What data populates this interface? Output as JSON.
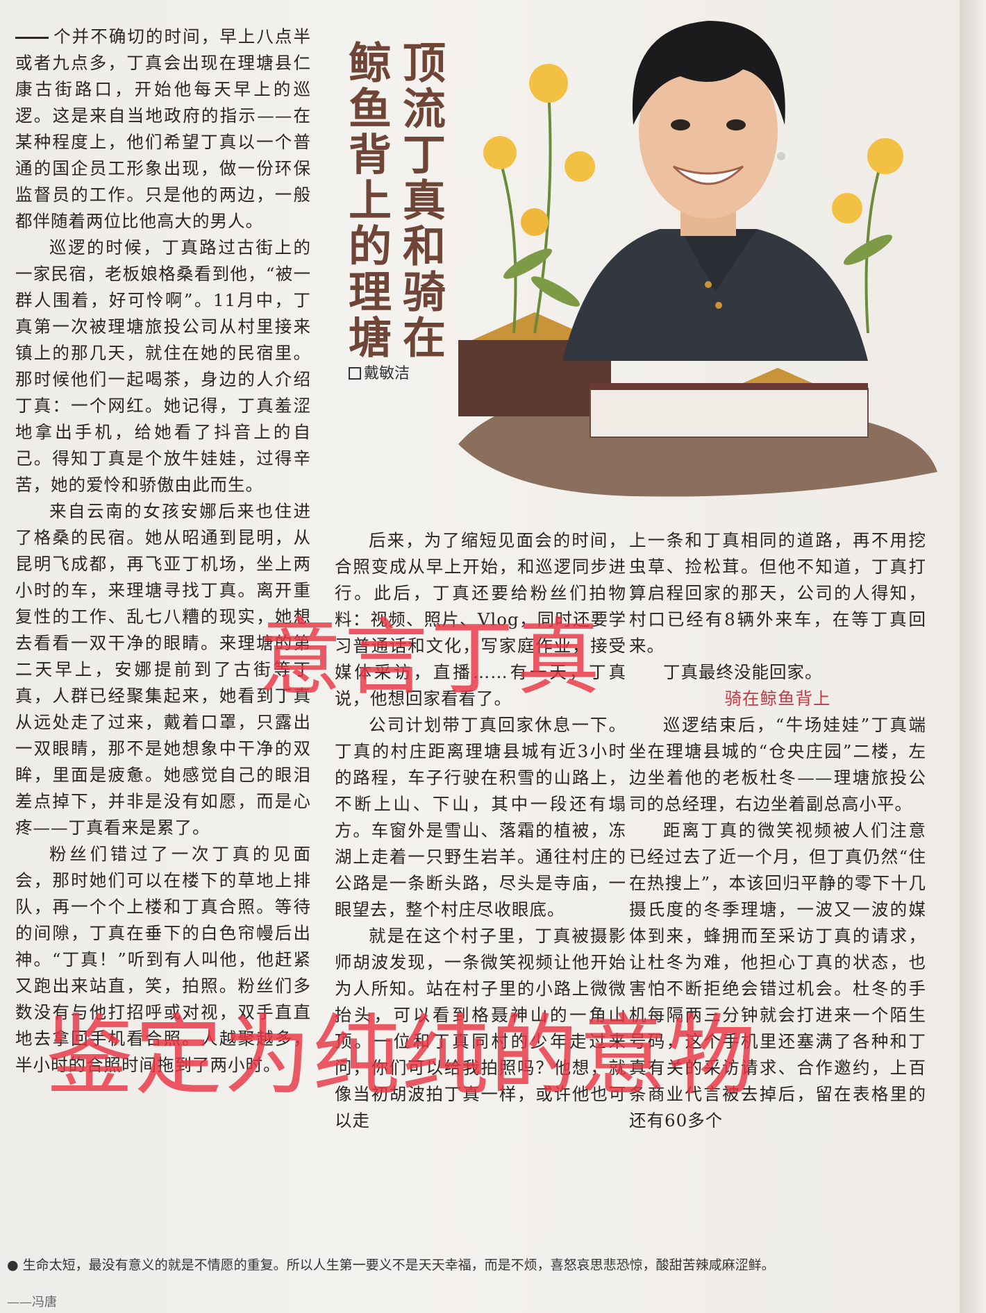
{
  "title": {
    "line1": "顶流丁真和骑在",
    "line2": "鲸鱼背上的理塘"
  },
  "author": "戴敏洁",
  "column1": [
    "个并不确切的时间，早上八点半或者九点多，丁真会出现在理塘县仁康古街路口，开始他每天早上的巡逻。这是来自当地政府的指示——在某种程度上，他们希望丁真以一个普通的国企员工形象出现，做一份环保监督员的工作。只是他的两边，一般都伴随着两位比他高大的男人。",
    "巡逻的时候，丁真路过古街上的一家民宿，老板娘格桑看到他，“被一群人围着，好可怜啊”。11月中，丁真第一次被理塘旅投公司从村里接来镇上的那几天，就住在她的民宿里。那时候他们一起喝茶，身边的人介绍丁真：一个网红。她记得，丁真羞涩地拿出手机，给她看了抖音上的自己。得知丁真是个放牛娃娃，过得辛苦，她的爱怜和骄傲由此而生。",
    "来自云南的女孩安娜后来也住进了格桑的民宿。她从昭通到昆明，从昆明飞成都，再飞亚丁机场，坐上两小时的车，来理塘寻找丁真。离开重复性的工作、乱七八糟的现实，她想去看看一双干净的眼睛。来理塘的第二天早上，安娜提前到了古街等丁真，人群已经聚集起来，她看到丁真从远处走了过来，戴着口罩，只露出一双眼睛，那不是她想象中干净的双眸，里面是疲惫。她感觉自己的眼泪差点掉下，并非是没有如愿，而是心疼——丁真看来是累了。",
    "粉丝们错过了一次丁真的见面会，那时她们可以在楼下的草地上排队，再一个个上楼和丁真合照。等待的间隙，丁真在垂下的白色帘幔后出神。“丁真！”听到有人叫他，他赶紧又跑出来站直，笑，拍照。粉丝们多数没有与他打招呼或对视，双手直直地去拿回手机看合照。人越聚越多，半小时的合照时间拖到了两小时。"
  ],
  "column2": [
    "后来，为了缩短见面会的时间，合照变成从早上开始，和巡逻同步进行。此后，丁真还要给粉丝们拍物料：视频、照片、Vlog，同时还要学习普通话和文化，写家庭作业，接受媒体采访，直播……有一天，丁真说，他想回家看看了。",
    "公司计划带丁真回家休息一下。丁真的村庄距离理塘县城有近3小时的路程，车子行驶在积雪的山路上，不断上山、下山，其中一段还有塌方。车窗外是雪山、落霜的植被，冻湖上走着一只野生岩羊。通往村庄的公路是一条断头路，尽头是寺庙，一眼望去，整个村庄尽收眼底。",
    "就是在这个村子里，丁真被摄影师胡波发现，一条微笑视频让他开始为人所知。站在村子里的小路上微微抬头，可以看到格聂神山的一角山顶。一位和丁真同村的少年走过来问，你们可以给我拍照吗？他想，就像当初胡波拍丁真一样，或许他也可以走"
  ],
  "column3": {
    "para1": "上一条和丁真相同的道路，再不用挖虫草、捡松茸。但他不知道，丁真打算启程回家的那天，公司的人得知，村口已经有8辆外来车，在等丁真回来。",
    "para2": "丁真最终没能回家。",
    "subhead": "骑在鲸鱼背上",
    "para3": "巡逻结束后，“牛场娃娃”丁真端坐在理塘县城的“仓央庄园”二楼，左边坐着他的老板杜冬——理塘旅投公司的总经理，右边坐着副总高小平。",
    "para4": "距离丁真的微笑视频被人们注意已经过去了近一个月，但丁真仍然“住在热搜上”，本该回归平静的零下十几摄氏度的冬季理塘，一波又一波的媒体到来，蜂拥而至采访丁真的请求，让杜冬为难，他担心丁真的状态，也害怕不断拒绝会错过机会。杜冬的手机每隔两三分钟就会打进来一个陌生号码，这个手机里还塞满了各种和丁真有关的采访请求、合作邀约，上百条商业代言被去掉后，留在表格里的还有60多个"
  },
  "watermark": {
    "text1": "意言丁真",
    "text2": "鉴定为纯纯的意物"
  },
  "footer": {
    "label": "● 生命太短，最没有意义的就是不情愿的重复。所以人生第一要义不是天天幸福，而是不烦，喜怒哀思悲恐惊，酸甜苦辣咸麻涩鲜。",
    "sub": "——冯唐"
  },
  "colors": {
    "title": "#6e4536",
    "watermark": "#e83644",
    "subhead": "#c33a47"
  }
}
